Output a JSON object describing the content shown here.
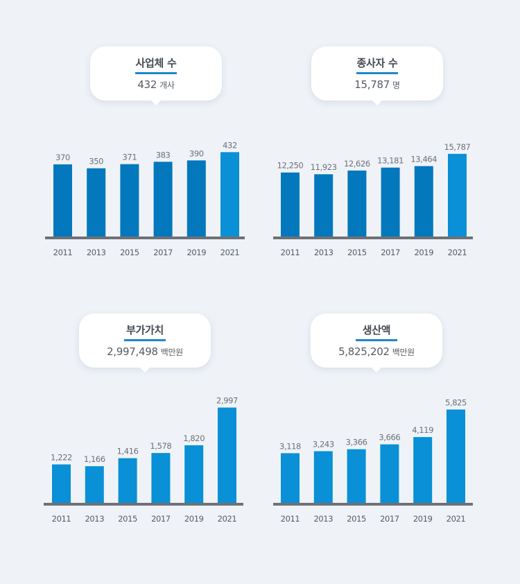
{
  "colors": {
    "bar_dark": "#0378bd",
    "bar_light": "#0990d6",
    "baseline": "#6e7277",
    "underline": "#1f86cf",
    "background": "#eff3f8"
  },
  "chart_data": [
    {
      "type": "bar",
      "title": "사업체 수",
      "summary_value": "432",
      "summary_unit": "개사",
      "categories": [
        "2011",
        "2013",
        "2015",
        "2017",
        "2019",
        "2021"
      ],
      "values": [
        370,
        350,
        371,
        383,
        390,
        432
      ],
      "value_labels": [
        "370",
        "350",
        "371",
        "383",
        "390",
        "432"
      ],
      "bar_colors": [
        "#0378bd",
        "#0378bd",
        "#0378bd",
        "#0378bd",
        "#0378bd",
        "#0990d6"
      ],
      "ylim": [
        0,
        472
      ],
      "grid": false
    },
    {
      "type": "bar",
      "title": "종사자 수",
      "summary_value": "15,787",
      "summary_unit": "명",
      "categories": [
        "2011",
        "2013",
        "2015",
        "2017",
        "2019",
        "2021"
      ],
      "values": [
        12250,
        11923,
        12626,
        13181,
        13464,
        15787
      ],
      "value_labels": [
        "12,250",
        "11,923",
        "12,626",
        "13,181",
        "13,464",
        "15,787"
      ],
      "bar_colors": [
        "#0378bd",
        "#0378bd",
        "#0378bd",
        "#0378bd",
        "#0378bd",
        "#0990d6"
      ],
      "ylim": [
        0,
        17600
      ],
      "grid": false
    },
    {
      "type": "bar",
      "title": "부가가치",
      "summary_value": "2,997,498",
      "summary_unit": "백만원",
      "categories": [
        "2011",
        "2013",
        "2015",
        "2017",
        "2019",
        "2021"
      ],
      "values": [
        1222,
        1166,
        1416,
        1578,
        1820,
        2997
      ],
      "value_labels": [
        "1,222",
        "1,166",
        "1,416",
        "1,578",
        "1,820",
        "2,997"
      ],
      "bar_colors": [
        "#0990d6",
        "#0990d6",
        "#0990d6",
        "#0990d6",
        "#0990d6",
        "#0990d6"
      ],
      "ylim": [
        0,
        3140
      ],
      "grid": false
    },
    {
      "type": "bar",
      "title": "생산액",
      "summary_value": "5,825,202",
      "summary_unit": "백만원",
      "categories": [
        "2011",
        "2013",
        "2015",
        "2017",
        "2019",
        "2021"
      ],
      "values": [
        3118,
        3243,
        3366,
        3666,
        4119,
        5825
      ],
      "value_labels": [
        "3,118",
        "3,243",
        "3,366",
        "3,666",
        "4,119",
        "5,825"
      ],
      "bar_colors": [
        "#0990d6",
        "#0990d6",
        "#0990d6",
        "#0990d6",
        "#0990d6",
        "#0990d6"
      ],
      "ylim": [
        0,
        6230
      ],
      "grid": false
    }
  ]
}
